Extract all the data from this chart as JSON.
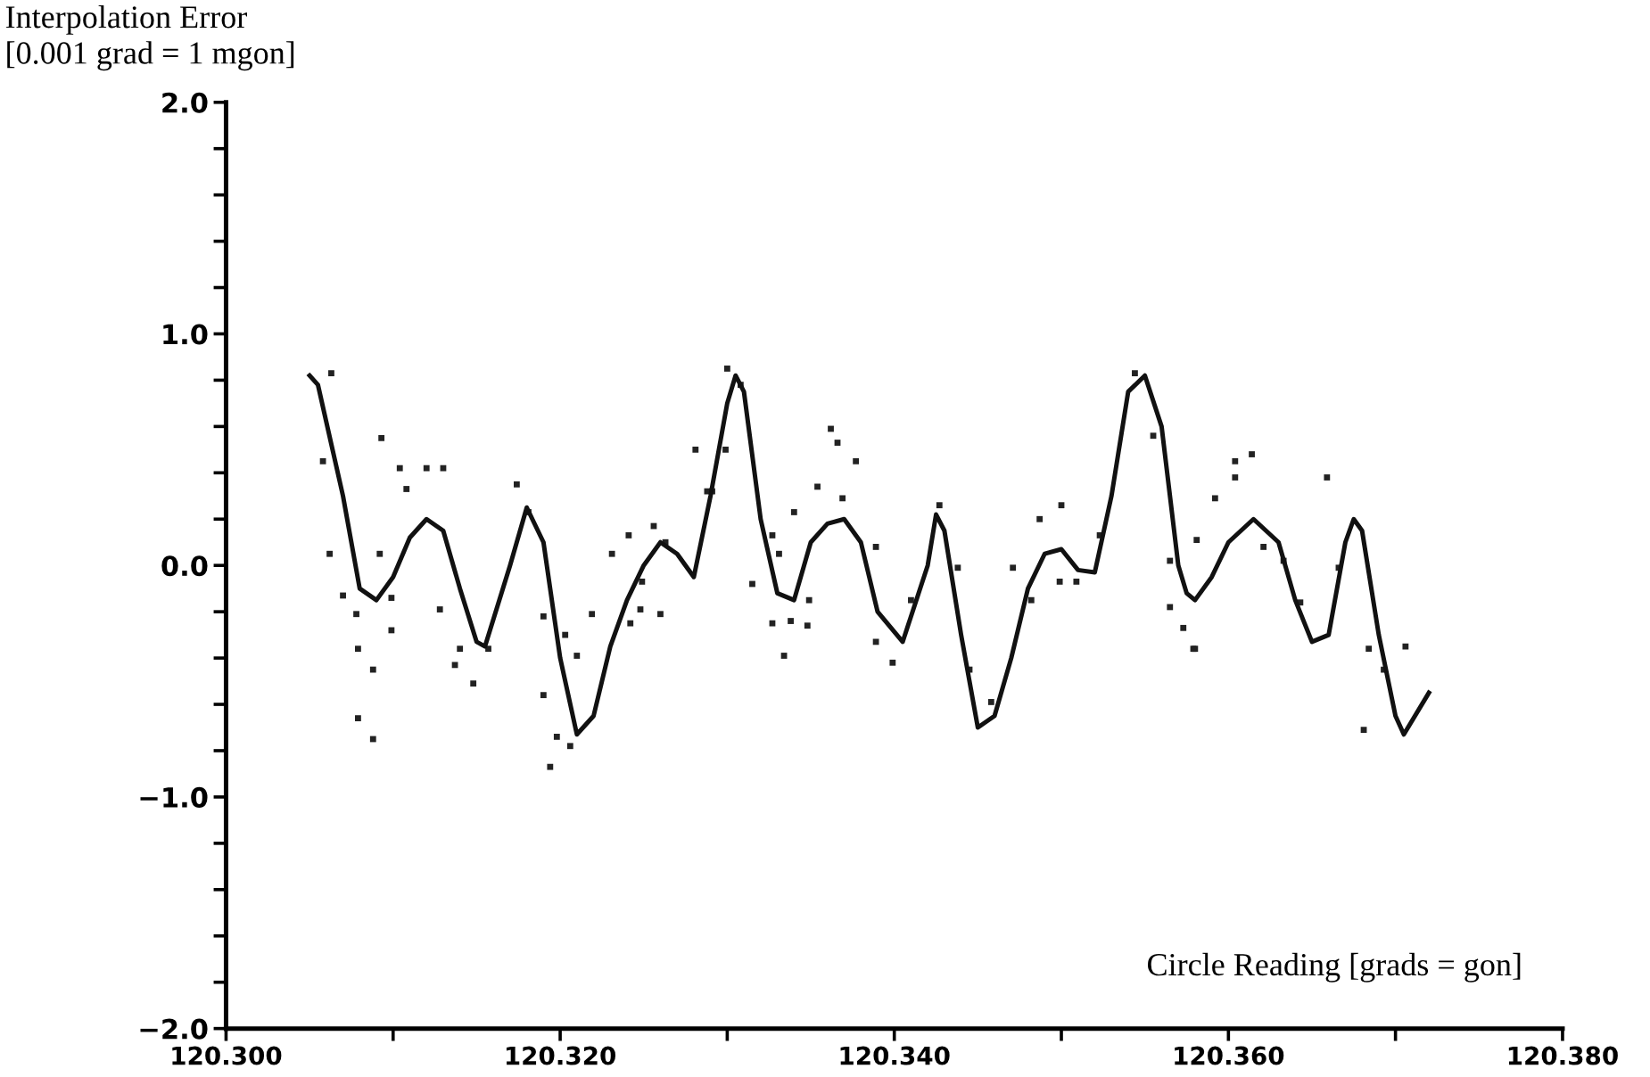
{
  "chart_data": {
    "type": "line",
    "ylabel": "Interpolation Error\n[0.001 grad = 1 mgon]",
    "xlabel": "Circle Reading [grads = gon]",
    "xlim": [
      120.3,
      120.38
    ],
    "xticks": [
      {
        "value": 120.3,
        "label": "120.300"
      },
      {
        "value": 120.31,
        "label": null
      },
      {
        "value": 120.32,
        "label": "120.320"
      },
      {
        "value": 120.33,
        "label": null
      },
      {
        "value": 120.34,
        "label": "120.340"
      },
      {
        "value": 120.35,
        "label": null
      },
      {
        "value": 120.36,
        "label": "120.360"
      },
      {
        "value": 120.37,
        "label": null
      },
      {
        "value": 120.38,
        "label": "120.380"
      }
    ],
    "ylim": [
      -2.0,
      2.0
    ],
    "yticks": [
      {
        "value": -2.0,
        "label": "−2.0"
      },
      {
        "value": -1.8,
        "label": null
      },
      {
        "value": -1.6,
        "label": null
      },
      {
        "value": -1.4,
        "label": null
      },
      {
        "value": -1.2,
        "label": null
      },
      {
        "value": -1.0,
        "label": "−1.0"
      },
      {
        "value": -0.8,
        "label": null
      },
      {
        "value": -0.6,
        "label": null
      },
      {
        "value": -0.4,
        "label": null
      },
      {
        "value": -0.2,
        "label": null
      },
      {
        "value": 0.0,
        "label": "0.0"
      },
      {
        "value": 0.2,
        "label": null
      },
      {
        "value": 0.4,
        "label": null
      },
      {
        "value": 0.6,
        "label": null
      },
      {
        "value": 0.8,
        "label": null
      },
      {
        "value": 1.0,
        "label": "1.0"
      },
      {
        "value": 1.2,
        "label": null
      },
      {
        "value": 1.4,
        "label": null
      },
      {
        "value": 1.6,
        "label": null
      },
      {
        "value": 1.8,
        "label": null
      },
      {
        "value": 2.0,
        "label": "2.0"
      }
    ],
    "grid": false,
    "series": [
      {
        "type": "scatter",
        "color": "#222222",
        "marker": "square",
        "x": [
          120.3058,
          120.3063,
          120.3093,
          120.3104,
          120.312,
          120.313,
          120.3108,
          120.3174,
          120.3062,
          120.3092,
          120.307,
          120.3078,
          120.3079,
          120.3088,
          120.3079,
          120.3088,
          120.3099,
          120.3099,
          120.3128,
          120.314,
          120.3137,
          120.3148,
          120.3157,
          120.3181,
          120.319,
          120.319,
          120.3198,
          120.3206,
          120.3194,
          120.3203,
          120.321,
          120.3219,
          120.3231,
          120.3241,
          120.3256,
          120.3249,
          120.3248,
          120.326,
          120.3242,
          120.3263,
          120.3281,
          120.3288,
          120.33,
          120.3308,
          120.3299,
          120.3291,
          120.3362,
          120.3366,
          120.3377,
          120.3354,
          120.3369,
          120.334,
          120.3327,
          120.3315,
          120.3331,
          120.3349,
          120.3327,
          120.3338,
          120.3348,
          120.3334,
          120.3389,
          120.3389,
          120.3399,
          120.3427,
          120.341,
          120.3438,
          120.3445,
          120.3458,
          120.3471,
          120.3487,
          120.35,
          120.3482,
          120.3499,
          120.3509,
          120.3523,
          120.3544,
          120.3555,
          120.3565,
          120.3565,
          120.3573,
          120.3579,
          120.3592,
          120.3604,
          120.3604,
          120.3614,
          120.3581,
          120.358,
          120.3621,
          120.3633,
          120.3643,
          120.3659,
          120.3666,
          120.3684,
          120.3693,
          120.3681,
          120.3706
        ],
        "values": [
          0.45,
          0.83,
          0.55,
          0.42,
          0.42,
          0.42,
          0.33,
          0.35,
          0.05,
          0.05,
          -0.13,
          -0.21,
          -0.36,
          -0.45,
          -0.66,
          -0.75,
          -0.28,
          -0.14,
          -0.19,
          -0.36,
          -0.43,
          -0.51,
          -0.36,
          0.23,
          -0.22,
          -0.56,
          -0.74,
          -0.78,
          -0.87,
          -0.3,
          -0.39,
          -0.21,
          0.05,
          0.13,
          0.17,
          -0.07,
          -0.19,
          -0.21,
          -0.25,
          0.1,
          0.5,
          0.32,
          0.85,
          0.78,
          0.5,
          0.32,
          0.59,
          0.53,
          0.45,
          0.34,
          0.29,
          0.23,
          0.13,
          -0.08,
          0.05,
          -0.15,
          -0.25,
          -0.24,
          -0.26,
          -0.39,
          0.08,
          -0.33,
          -0.42,
          0.26,
          -0.15,
          -0.01,
          -0.45,
          -0.59,
          -0.01,
          0.2,
          0.26,
          -0.15,
          -0.07,
          -0.07,
          0.13,
          0.83,
          0.56,
          0.02,
          -0.18,
          -0.27,
          -0.36,
          0.29,
          0.45,
          0.38,
          0.48,
          0.11,
          -0.36,
          0.08,
          0.02,
          -0.16,
          0.38,
          -0.01,
          -0.36,
          -0.45,
          -0.71,
          -0.35
        ]
      },
      {
        "color": "#111111",
        "line_style": "solid",
        "marker": "none",
        "x": [
          120.305,
          120.3055,
          120.307,
          120.308,
          120.309,
          120.31,
          120.311,
          120.312,
          120.313,
          120.314,
          120.315,
          120.3155,
          120.317,
          120.318,
          120.319,
          120.32,
          120.321,
          120.322,
          120.323,
          120.324,
          120.325,
          120.326,
          120.327,
          120.328,
          120.329,
          120.33,
          120.3305,
          120.331,
          120.332,
          120.333,
          120.334,
          120.335,
          120.336,
          120.337,
          120.338,
          120.339,
          120.3405,
          120.342,
          120.3425,
          120.343,
          120.344,
          120.345,
          120.346,
          120.347,
          120.348,
          120.349,
          120.35,
          120.351,
          120.352,
          120.353,
          120.354,
          120.355,
          120.356,
          120.357,
          120.3575,
          120.358,
          120.359,
          120.36,
          120.3615,
          120.363,
          120.364,
          120.365,
          120.366,
          120.367,
          120.3675,
          120.368,
          120.369,
          120.37,
          120.3705,
          120.372
        ],
        "values": [
          0.82,
          0.78,
          0.3,
          -0.1,
          -0.15,
          -0.05,
          0.12,
          0.2,
          0.15,
          -0.1,
          -0.33,
          -0.35,
          0.0,
          0.25,
          0.1,
          -0.4,
          -0.73,
          -0.65,
          -0.35,
          -0.15,
          0.0,
          0.1,
          0.05,
          -0.05,
          0.3,
          0.7,
          0.82,
          0.75,
          0.2,
          -0.12,
          -0.15,
          0.1,
          0.18,
          0.2,
          0.1,
          -0.2,
          -0.33,
          0.0,
          0.22,
          0.15,
          -0.3,
          -0.7,
          -0.65,
          -0.4,
          -0.1,
          0.05,
          0.07,
          -0.02,
          -0.03,
          0.3,
          0.75,
          0.82,
          0.6,
          0.0,
          -0.12,
          -0.15,
          -0.05,
          0.1,
          0.2,
          0.1,
          -0.15,
          -0.33,
          -0.3,
          0.1,
          0.2,
          0.15,
          -0.3,
          -0.65,
          -0.73,
          -0.55
        ]
      }
    ]
  }
}
